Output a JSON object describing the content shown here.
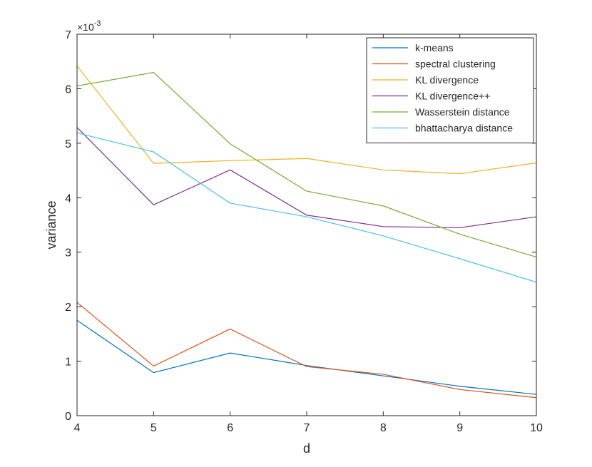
{
  "chart_data": {
    "type": "line",
    "title": "",
    "xlabel": "d",
    "ylabel": "variance",
    "y_scale_label": "×10^-3",
    "xlim": [
      4,
      10
    ],
    "ylim": [
      0,
      7
    ],
    "x": [
      4,
      5,
      6,
      7,
      8,
      9,
      10
    ],
    "xticks": [
      "4",
      "5",
      "6",
      "7",
      "8",
      "9",
      "10"
    ],
    "yticks": [
      "0",
      "1",
      "2",
      "3",
      "4",
      "5",
      "6",
      "7"
    ],
    "grid": false,
    "legend_position": "top-right",
    "series": [
      {
        "name": "k-means",
        "color": "#0072BD",
        "values": [
          1.75,
          0.79,
          1.15,
          0.92,
          0.73,
          0.54,
          0.39
        ]
      },
      {
        "name": "spectral clustering",
        "color": "#D95319",
        "values": [
          2.08,
          0.91,
          1.59,
          0.9,
          0.76,
          0.48,
          0.33
        ]
      },
      {
        "name": "KL divergence",
        "color": "#EDB120",
        "values": [
          6.42,
          4.63,
          4.68,
          4.72,
          4.51,
          4.44,
          4.64
        ]
      },
      {
        "name": "KL divergence++",
        "color": "#7E2F8E",
        "values": [
          5.29,
          3.87,
          4.51,
          3.68,
          3.47,
          3.45,
          3.65
        ]
      },
      {
        "name": "Wasserstein distance",
        "color": "#77AC30",
        "values": [
          6.05,
          6.3,
          4.99,
          4.12,
          3.85,
          3.33,
          2.91
        ]
      },
      {
        "name": "bhattacharya distance",
        "color": "#4DBEEE",
        "values": [
          5.19,
          4.84,
          3.9,
          3.65,
          3.3,
          2.88,
          2.45
        ]
      }
    ]
  }
}
